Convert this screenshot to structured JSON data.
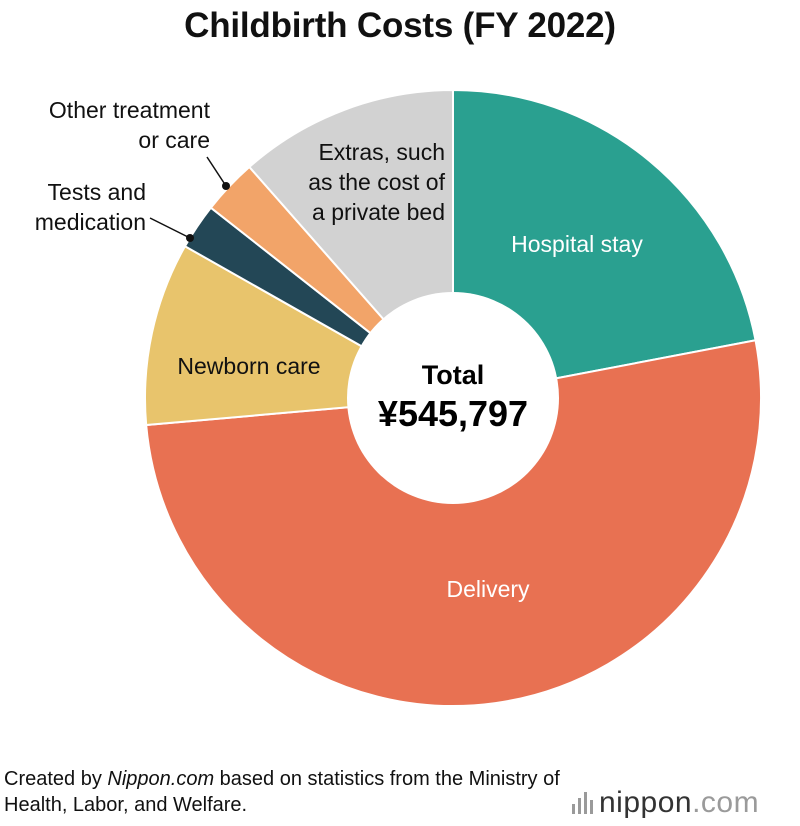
{
  "title": "Childbirth Costs (FY 2022)",
  "chart_data": {
    "type": "pie",
    "style": "donut",
    "title": "Childbirth Costs (FY 2022)",
    "total_label": "Total",
    "total_value": "¥545,797",
    "slices": [
      {
        "label": "Hospital stay",
        "fraction": 0.22,
        "color": "#2aa090",
        "label_color": "#ffffff"
      },
      {
        "label": "Delivery",
        "fraction": 0.516,
        "color": "#e87152",
        "label_color": "#ffffff"
      },
      {
        "label": "Newborn care",
        "fraction": 0.096,
        "color": "#e8c46c",
        "label_color": "#111111"
      },
      {
        "label": "Tests and medication",
        "fraction": 0.024,
        "color": "#234756",
        "label_color": "#111111"
      },
      {
        "label": "Other treatment or care",
        "fraction": 0.029,
        "color": "#f2a469",
        "label_color": "#111111"
      },
      {
        "label": "Extras, such as the cost of a private bed",
        "fraction": 0.115,
        "color": "#d2d2d2",
        "label_color": "#111111"
      }
    ]
  },
  "footer": {
    "note_prefix": "Created by ",
    "note_source": "Nippon.com",
    "note_suffix": " based on statistics from the Ministry of Health, Labor, and Welfare.",
    "logo_name": "nippon",
    "logo_suffix": ".com",
    "logo_icon": "equalizer-bars-icon"
  }
}
